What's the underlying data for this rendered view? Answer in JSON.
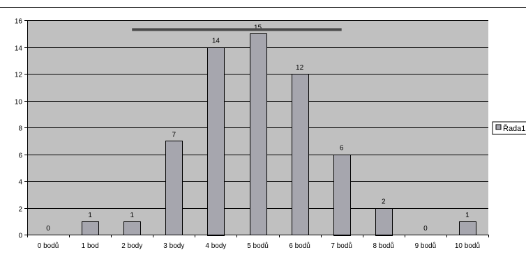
{
  "chart_data": {
    "type": "bar",
    "categories": [
      "0 bodů",
      "1 bod",
      "2 body",
      "3 body",
      "4 body",
      "5 bodů",
      "6 bodů",
      "7 bodů",
      "8 bodů",
      "9 bodů",
      "10 bodů"
    ],
    "series": [
      {
        "name": "Řada1",
        "values": [
          0,
          1,
          1,
          7,
          14,
          15,
          12,
          6,
          2,
          0,
          1
        ]
      }
    ],
    "data_labels": [
      "0",
      "1",
      "1",
      "7",
      "14",
      "15",
      "12",
      "6",
      "2",
      "0",
      "1"
    ],
    "y_ticks": [
      "0",
      "2",
      "4",
      "6",
      "8",
      "10",
      "12",
      "14",
      "16"
    ],
    "ylim": [
      0,
      16
    ],
    "grid": true,
    "legend_position": "right",
    "annotation_line": {
      "x_from": "2 body",
      "x_to": "7 bodů",
      "y": 15.3
    },
    "title": "",
    "xlabel": "",
    "ylabel": ""
  },
  "colors": {
    "plot_background": "#c0c0c0",
    "bar_fill": "#a6a6ae",
    "bar_stroke": "#000000",
    "gridline": "#000000",
    "annotation_line": "#4a4a4a",
    "page_background": "#ffffff"
  }
}
